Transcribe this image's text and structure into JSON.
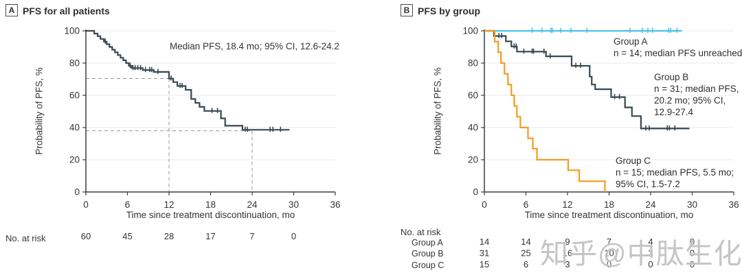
{
  "panels": [
    {
      "tag": "A",
      "title": "PFS for all patients"
    },
    {
      "tag": "B",
      "title": "PFS by group"
    }
  ],
  "watermark": {
    "text": "知乎@中肽生化"
  },
  "colors": {
    "all_patients": "#37474F",
    "group_a": "#4BC2E5",
    "group_b": "#37474F",
    "group_c": "#F59B1E",
    "axis": "#3d3d3d",
    "grid": "#e9e9e9",
    "ref_dash": "#8f9499"
  },
  "chart_data": [
    {
      "type": "line",
      "subtype": "kaplan-meier-step",
      "panel": "A",
      "title": "PFS for all patients",
      "annotation": "Median PFS, 18.4 mo; 95% CI, 12.6-24.2",
      "xlabel": "Time since treatment discontinuation, mo",
      "ylabel": "Probability of PFS, %",
      "xlim": [
        0,
        36
      ],
      "ylim": [
        0,
        100
      ],
      "xticks": [
        "0",
        "6",
        "12",
        "18",
        "24",
        "30",
        "36"
      ],
      "yticks": [
        "0",
        "20",
        "40",
        "60",
        "80",
        "100"
      ],
      "grid": true,
      "ref_lines": [
        {
          "x": 12,
          "y": 70.4
        },
        {
          "x": 24,
          "y": 38.0
        }
      ],
      "series": [
        {
          "name": "All patients",
          "color": "#37474F",
          "steps": [
            [
              0,
              100
            ],
            [
              1.2,
              100
            ],
            [
              1.2,
              98.3
            ],
            [
              1.7,
              98.3
            ],
            [
              1.7,
              96.7
            ],
            [
              2.1,
              96.7
            ],
            [
              2.1,
              95
            ],
            [
              2.6,
              95
            ],
            [
              2.6,
              93.3
            ],
            [
              3.0,
              93.3
            ],
            [
              3.0,
              91.7
            ],
            [
              3.4,
              91.7
            ],
            [
              3.4,
              90
            ],
            [
              3.8,
              90
            ],
            [
              3.8,
              88.3
            ],
            [
              4.2,
              88.3
            ],
            [
              4.2,
              86.7
            ],
            [
              4.6,
              86.7
            ],
            [
              4.6,
              85
            ],
            [
              5.0,
              85
            ],
            [
              5.0,
              83.3
            ],
            [
              5.4,
              83.3
            ],
            [
              5.4,
              81.7
            ],
            [
              5.8,
              81.7
            ],
            [
              5.8,
              80
            ],
            [
              6.2,
              80
            ],
            [
              6.2,
              78.3
            ],
            [
              6.6,
              78.3
            ],
            [
              6.6,
              76.9
            ],
            [
              8.2,
              76.9
            ],
            [
              8.2,
              75.7
            ],
            [
              9.8,
              75.7
            ],
            [
              9.8,
              74.5
            ],
            [
              12.0,
              74.5
            ],
            [
              12.0,
              70.4
            ],
            [
              12.6,
              70.4
            ],
            [
              12.6,
              68.2
            ],
            [
              13.2,
              68.2
            ],
            [
              13.2,
              65.8
            ],
            [
              14.4,
              65.8
            ],
            [
              14.4,
              63.4
            ],
            [
              15.2,
              63.4
            ],
            [
              15.2,
              57.7
            ],
            [
              15.8,
              57.7
            ],
            [
              15.8,
              55.3
            ],
            [
              16.4,
              55.3
            ],
            [
              16.4,
              52.8
            ],
            [
              17.1,
              52.8
            ],
            [
              17.1,
              50.3
            ],
            [
              19.5,
              50.3
            ],
            [
              19.5,
              45.7
            ],
            [
              20.1,
              45.7
            ],
            [
              20.1,
              41.1
            ],
            [
              22.6,
              41.1
            ],
            [
              22.6,
              38.6
            ],
            [
              29.4,
              38.6
            ]
          ],
          "censors": [
            2.8,
            6.4,
            6.8,
            7.1,
            7.5,
            7.9,
            8.6,
            9.2,
            9.5,
            10.4,
            12.3,
            13.6,
            13.9,
            18.2,
            19.0,
            23.0,
            23.3,
            26.6,
            27.0,
            28.1
          ]
        }
      ],
      "risk_table": {
        "label": "No. at risk",
        "rows": [
          {
            "name": "",
            "values": [
              "60",
              "45",
              "28",
              "17",
              "7",
              "0"
            ]
          }
        ]
      }
    },
    {
      "type": "line",
      "subtype": "kaplan-meier-step",
      "panel": "B",
      "title": "PFS by group",
      "xlabel": "Time since treatment discontinuation, mo",
      "ylabel": "Probability of PFS, %",
      "xlim": [
        0,
        36
      ],
      "ylim": [
        0,
        100
      ],
      "xticks": [
        "0",
        "6",
        "12",
        "18",
        "24",
        "30",
        "36"
      ],
      "yticks": [
        "0",
        "20",
        "40",
        "60",
        "80",
        "100"
      ],
      "grid": true,
      "ref_lines": [],
      "series": [
        {
          "name": "Group A",
          "color": "#4BC2E5",
          "label_lines": [
            "Group A",
            "n = 14; median PFS unreached"
          ],
          "steps": [
            [
              0,
              100
            ],
            [
              28.5,
              100
            ]
          ],
          "censors": [
            6.9,
            8.3,
            9.6,
            9.8,
            11.0,
            12.5,
            14.8,
            21.0,
            22.8,
            23.6,
            24.3,
            26.6,
            26.9,
            27.8
          ]
        },
        {
          "name": "Group B",
          "color": "#37474F",
          "label_lines": [
            "Group B",
            "n = 31; median PFS,",
            "20.2 mo; 95% CI,",
            "12.9-27.4"
          ],
          "steps": [
            [
              0,
              100
            ],
            [
              1.4,
              100
            ],
            [
              1.4,
              96.8
            ],
            [
              3.1,
              96.8
            ],
            [
              3.1,
              93.5
            ],
            [
              3.9,
              93.5
            ],
            [
              3.9,
              90.3
            ],
            [
              4.7,
              90.3
            ],
            [
              4.7,
              87.1
            ],
            [
              8.9,
              87.1
            ],
            [
              8.9,
              84.2
            ],
            [
              12.6,
              84.2
            ],
            [
              12.6,
              78.3
            ],
            [
              15.2,
              78.3
            ],
            [
              15.2,
              71.6
            ],
            [
              15.5,
              71.6
            ],
            [
              15.5,
              66.7
            ],
            [
              16.0,
              66.7
            ],
            [
              16.0,
              63.8
            ],
            [
              18.3,
              63.8
            ],
            [
              18.3,
              58.9
            ],
            [
              20.3,
              58.9
            ],
            [
              20.3,
              52.5
            ],
            [
              21.3,
              52.5
            ],
            [
              21.3,
              47.1
            ],
            [
              22.6,
              47.1
            ],
            [
              22.6,
              39.4
            ],
            [
              29.6,
              39.4
            ]
          ],
          "censors": [
            2.1,
            2.5,
            4.3,
            4.6,
            5.7,
            6.9,
            7.1,
            8.6,
            9.5,
            13.2,
            13.9,
            18.8,
            19.5,
            23.3,
            23.8,
            26.4,
            26.7,
            27.5
          ]
        },
        {
          "name": "Group C",
          "color": "#F59B1E",
          "label_lines": [
            "Group C",
            "n = 15; median PFS, 5.5 mo;",
            "95% CI, 1.5-7.2"
          ],
          "steps": [
            [
              0,
              100
            ],
            [
              1.5,
              100
            ],
            [
              1.5,
              93.3
            ],
            [
              2.0,
              93.3
            ],
            [
              2.0,
              86.7
            ],
            [
              2.4,
              86.7
            ],
            [
              2.4,
              80
            ],
            [
              2.9,
              80
            ],
            [
              2.9,
              73.3
            ],
            [
              3.4,
              73.3
            ],
            [
              3.4,
              66.7
            ],
            [
              3.9,
              66.7
            ],
            [
              3.9,
              60
            ],
            [
              4.3,
              60
            ],
            [
              4.3,
              53.3
            ],
            [
              4.7,
              53.3
            ],
            [
              4.7,
              46.7
            ],
            [
              5.2,
              46.7
            ],
            [
              5.2,
              40
            ],
            [
              6.3,
              40
            ],
            [
              6.3,
              33.3
            ],
            [
              7.0,
              33.3
            ],
            [
              7.0,
              26.9
            ],
            [
              7.6,
              26.9
            ],
            [
              7.6,
              20
            ],
            [
              12.1,
              20
            ],
            [
              12.1,
              13.5
            ],
            [
              13.7,
              13.5
            ],
            [
              13.7,
              6.7
            ],
            [
              17.4,
              6.7
            ],
            [
              17.4,
              0
            ]
          ],
          "censors": []
        }
      ],
      "risk_table": {
        "label": "No. at risk",
        "rows": [
          {
            "name": "Group A",
            "values": [
              "14",
              "14",
              "9",
              "7",
              "4",
              "0"
            ]
          },
          {
            "name": "Group B",
            "values": [
              "31",
              "25",
              "16",
              "10",
              "3",
              "0"
            ]
          },
          {
            "name": "Group C",
            "values": [
              "15",
              "6",
              "3",
              "0",
              "0",
              "0"
            ]
          }
        ]
      }
    }
  ]
}
